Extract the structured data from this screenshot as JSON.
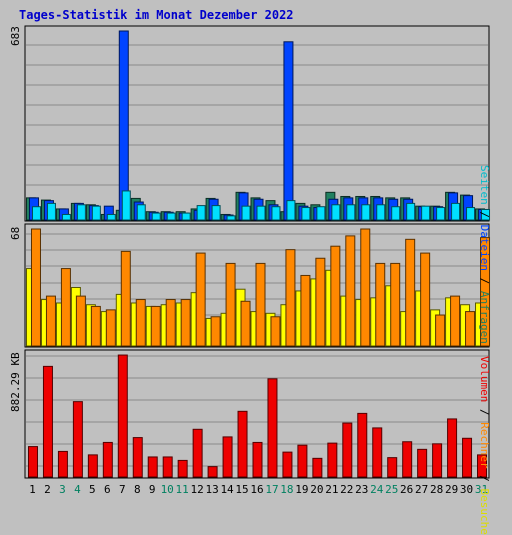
{
  "title": "Tages-Statistik im Monat Dezember 2022",
  "colors": {
    "background": "#c0c0c0",
    "frame": "#000000",
    "grid": "#8a8a8a",
    "anfragen": "#208060",
    "dateien": "#0044ff",
    "seiten": "#00e0ff",
    "besuche": "#ffff00",
    "rechner": "#ff8800",
    "volumen": "#ee0000",
    "weekday_label": "#000000",
    "weekend_label": "#008060"
  },
  "legend_right": {
    "top": [
      "Anfragen",
      "Dateien",
      "Seiten"
    ],
    "top_sep": " / ",
    "middle": [
      "Besuche",
      "Rechner",
      "Volumen"
    ]
  },
  "chart_data": [
    {
      "type": "bar",
      "name": "hits-files-pages",
      "ytick_max_label": "683",
      "ylim": [
        0,
        683
      ],
      "series": [
        {
          "name": "Anfragen",
          "values": [
            80,
            72,
            40,
            60,
            55,
            20,
            35,
            78,
            30,
            30,
            30,
            40,
            78,
            20,
            100,
            80,
            70,
            30,
            60,
            55,
            100,
            85,
            85,
            85,
            80,
            80,
            50,
            50,
            100,
            90,
            40
          ]
        },
        {
          "name": "Dateien",
          "values": [
            80,
            70,
            40,
            60,
            52,
            50,
            683,
            65,
            28,
            28,
            25,
            35,
            75,
            18,
            98,
            75,
            55,
            644,
            50,
            45,
            75,
            80,
            80,
            80,
            75,
            75,
            48,
            48,
            98,
            88,
            38
          ]
        },
        {
          "name": "Seiten",
          "values": [
            48,
            60,
            20,
            55,
            50,
            20,
            105,
            55,
            25,
            25,
            25,
            52,
            52,
            15,
            50,
            50,
            48,
            70,
            45,
            48,
            55,
            55,
            55,
            55,
            48,
            60,
            50,
            45,
            60,
            45,
            38
          ]
        }
      ]
    },
    {
      "type": "bar",
      "name": "visits-hosts",
      "ytick_max_label": "68",
      "ylim": [
        0,
        68
      ],
      "series": [
        {
          "name": "Besuche",
          "values": [
            45,
            27,
            25,
            34,
            24,
            20,
            30,
            25,
            23,
            24,
            25,
            31,
            16,
            19,
            33,
            20,
            19,
            24,
            32,
            39,
            44,
            29,
            27,
            28,
            35,
            20,
            32,
            21,
            28,
            24,
            25
          ]
        },
        {
          "name": "Rechner",
          "values": [
            68,
            29,
            45,
            29,
            23,
            21,
            55,
            27,
            23,
            27,
            27,
            54,
            17,
            48,
            26,
            48,
            17,
            56,
            41,
            51,
            58,
            64,
            68,
            48,
            48,
            62,
            54,
            18,
            29,
            20,
            63
          ]
        }
      ]
    },
    {
      "type": "bar",
      "name": "volume",
      "ytick_max_label": "882.29 KB",
      "ylim": [
        0,
        882.29
      ],
      "series": [
        {
          "name": "Volumen",
          "values": [
            220,
            800,
            185,
            545,
            160,
            250,
            882,
            285,
            145,
            145,
            120,
            345,
            75,
            290,
            475,
            250,
            710,
            180,
            230,
            135,
            245,
            390,
            460,
            355,
            140,
            255,
            200,
            240,
            420,
            280,
            160
          ]
        }
      ]
    }
  ],
  "days": [
    "1",
    "2",
    "3",
    "4",
    "5",
    "6",
    "7",
    "8",
    "9",
    "10",
    "11",
    "12",
    "13",
    "14",
    "15",
    "16",
    "17",
    "18",
    "19",
    "20",
    "21",
    "22",
    "23",
    "24",
    "25",
    "26",
    "27",
    "28",
    "29",
    "30",
    "31"
  ],
  "weekend_days": [
    3,
    4,
    10,
    11,
    17,
    18,
    24,
    25,
    31
  ]
}
